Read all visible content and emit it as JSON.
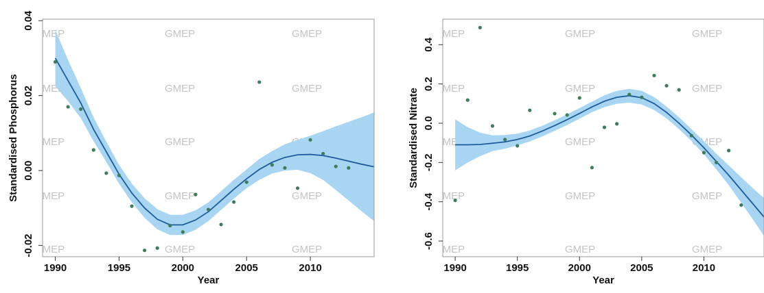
{
  "chart_data": [
    {
      "type": "scatter",
      "xlabel": "Year",
      "ylabel": "Standardised Phosphorus",
      "watermark": "GMEP",
      "x": [
        1990,
        1991,
        1992,
        1993,
        1994,
        1995,
        1996,
        1997,
        1998,
        1999,
        2000,
        2001,
        2002,
        2003,
        2004,
        2005,
        2006,
        2007,
        2008,
        2009,
        2010,
        2011,
        2012,
        2013
      ],
      "values": [
        0.029,
        0.017,
        0.0164,
        0.0055,
        -0.0007,
        -0.0013,
        -0.0095,
        -0.0213,
        -0.0207,
        -0.0147,
        -0.0164,
        -0.0064,
        -0.0104,
        -0.0144,
        -0.0084,
        -0.0031,
        0.0236,
        0.0015,
        0.0007,
        -0.0047,
        0.0082,
        0.0045,
        0.0011,
        0.0007
      ],
      "color": "#3d7d5c",
      "smooth": {
        "color": "#1d5c9c",
        "band_color": "#a8d5f2",
        "x": [
          1990,
          1991,
          1992,
          1993,
          1994,
          1995,
          1996,
          1997,
          1998,
          1999,
          2000,
          2001,
          2002,
          2003,
          2004,
          2005,
          2006,
          2007,
          2008,
          2009,
          2010,
          2011,
          2012,
          2013,
          2014,
          2015
        ],
        "values": [
          0.03,
          0.024,
          0.018,
          0.011,
          0.005,
          -0.001,
          -0.006,
          -0.01,
          -0.013,
          -0.0145,
          -0.0145,
          -0.0132,
          -0.011,
          -0.008,
          -0.005,
          -0.0022,
          0.0003,
          0.0022,
          0.0035,
          0.0042,
          0.0043,
          0.004,
          0.0033,
          0.0025,
          0.0017,
          0.001
        ],
        "lower": [
          0.0225,
          0.0185,
          0.014,
          0.0078,
          0.0023,
          -0.0035,
          -0.0085,
          -0.0126,
          -0.0157,
          -0.0172,
          -0.0172,
          -0.0158,
          -0.0135,
          -0.0105,
          -0.0075,
          -0.0047,
          -0.0025,
          -0.0008,
          0,
          0.0002,
          -0.0007,
          -0.0025,
          -0.0052,
          -0.008,
          -0.0108,
          -0.0135
        ],
        "upper": [
          0.0375,
          0.0295,
          0.022,
          0.0142,
          0.0077,
          0.0015,
          -0.0035,
          -0.0074,
          -0.0103,
          -0.0118,
          -0.0118,
          -0.0106,
          -0.0085,
          -0.0055,
          -0.0025,
          0.0003,
          0.0031,
          0.0052,
          0.007,
          0.0082,
          0.0093,
          0.0105,
          0.0118,
          0.013,
          0.0142,
          0.0155
        ]
      },
      "xlim": [
        1989,
        2015
      ],
      "xticks": [
        1990,
        1995,
        2000,
        2005,
        2010
      ],
      "ylim": [
        -0.023,
        0.0404
      ],
      "yticks": [
        -0.02,
        {
          "value": 0,
          "label": "0.00"
        },
        0.02,
        0.04
      ]
    },
    {
      "type": "scatter",
      "xlabel": "Year",
      "ylabel": "Standardised Nitrate",
      "watermark": "GMEP",
      "x": [
        1990,
        1991,
        1992,
        1993,
        1994,
        1995,
        1996,
        1998,
        1999,
        2000,
        2001,
        2002,
        2003,
        2004,
        2005,
        2006,
        2007,
        2008,
        2009,
        2010,
        2011,
        2012,
        2013
      ],
      "values": [
        -0.393,
        0.118,
        0.487,
        -0.014,
        -0.083,
        -0.115,
        0.066,
        0.049,
        0.042,
        0.129,
        -0.226,
        -0.021,
        -0.003,
        0.146,
        0.132,
        0.243,
        0.191,
        0.17,
        -0.063,
        -0.15,
        -0.2,
        -0.139,
        -0.417
      ],
      "color": "#3d7d5c",
      "smooth": {
        "color": "#1d5c9c",
        "band_color": "#a8d5f2",
        "x": [
          1990,
          1991,
          1992,
          1993,
          1994,
          1995,
          1996,
          1997,
          1998,
          1999,
          2000,
          2001,
          2002,
          2003,
          2004,
          2005,
          2006,
          2007,
          2008,
          2009,
          2010,
          2011,
          2012,
          2013,
          2014,
          2015
        ],
        "values": [
          -0.11,
          -0.11,
          -0.108,
          -0.102,
          -0.095,
          -0.083,
          -0.065,
          -0.04,
          -0.012,
          0.018,
          0.05,
          0.083,
          0.112,
          0.132,
          0.14,
          0.13,
          0.1,
          0.055,
          0,
          -0.06,
          -0.125,
          -0.195,
          -0.265,
          -0.34,
          -0.415,
          -0.49
        ],
        "lower": [
          -0.24,
          -0.2,
          -0.168,
          -0.142,
          -0.13,
          -0.113,
          -0.093,
          -0.067,
          -0.039,
          -0.009,
          0.023,
          0.056,
          0.082,
          0.099,
          0.105,
          0.095,
          0.067,
          0.025,
          -0.03,
          -0.09,
          -0.158,
          -0.235,
          -0.315,
          -0.405,
          -0.495,
          -0.59
        ],
        "upper": [
          0.02,
          -0.02,
          -0.048,
          -0.062,
          -0.06,
          -0.053,
          -0.037,
          -0.013,
          0.015,
          0.045,
          0.077,
          0.11,
          0.142,
          0.165,
          0.175,
          0.165,
          0.133,
          0.085,
          0.03,
          -0.03,
          -0.092,
          -0.155,
          -0.215,
          -0.275,
          -0.335,
          -0.39
        ]
      },
      "xlim": [
        1989,
        2015
      ],
      "xticks": [
        1990,
        1995,
        2000,
        2005,
        2010
      ],
      "ylim": [
        -0.68,
        0.53
      ],
      "yticks": [
        -0.6,
        -0.4,
        -0.2,
        {
          "value": 0,
          "label": "0.0"
        },
        0.2,
        0.4
      ]
    }
  ]
}
